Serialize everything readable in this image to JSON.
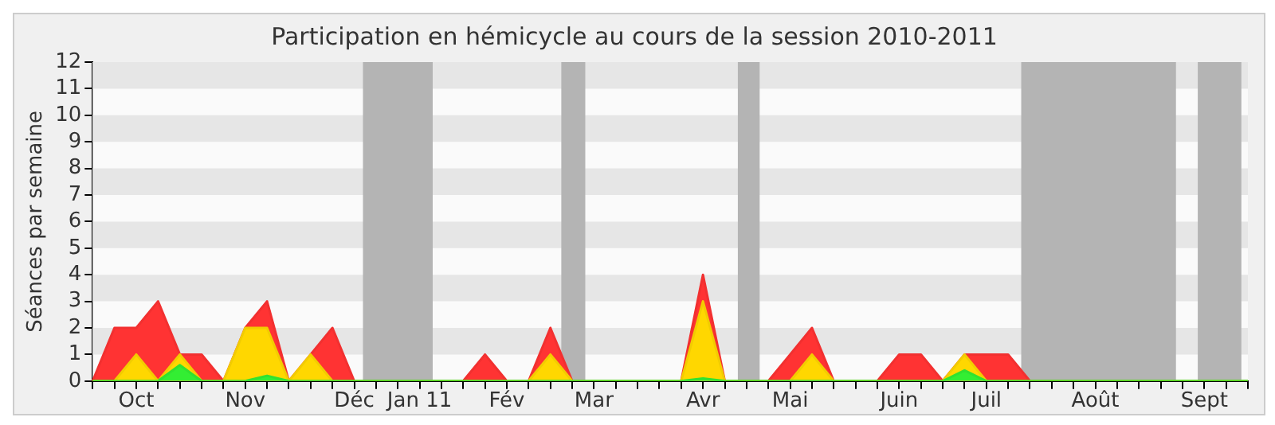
{
  "chart_data": {
    "type": "area",
    "title": "Participation en hémicycle au cours de la session 2010-2011",
    "ylabel": "Séances par semaine",
    "categories": [
      null,
      null,
      "Oct",
      null,
      null,
      null,
      null,
      "Nov",
      null,
      null,
      null,
      null,
      "Déc",
      null,
      null,
      "Jan 11",
      null,
      null,
      null,
      "Fév",
      null,
      null,
      null,
      "Mar",
      null,
      null,
      null,
      null,
      "Avr",
      null,
      null,
      null,
      "Mai",
      null,
      null,
      null,
      null,
      "Juin",
      null,
      null,
      null,
      "Juil",
      null,
      null,
      null,
      null,
      "Août",
      null,
      null,
      null,
      null,
      "Sept",
      null,
      null
    ],
    "series": [
      {
        "color": "#ff3333",
        "values": [
          0,
          2,
          2,
          3,
          1,
          1,
          0,
          2,
          3,
          0,
          1,
          2,
          0,
          0,
          0,
          0,
          0,
          0,
          1,
          0,
          0,
          2,
          0,
          0,
          0,
          0,
          0,
          0,
          4,
          0,
          0,
          0,
          1,
          2,
          0,
          0,
          0,
          1,
          1,
          0,
          1,
          1,
          1,
          0,
          0,
          0,
          0,
          0,
          0,
          0,
          0,
          0,
          0,
          0
        ]
      },
      {
        "color": "#ffd700",
        "values": [
          0,
          0,
          1,
          0,
          1,
          0,
          0,
          2,
          2,
          0,
          1,
          0,
          0,
          0,
          0,
          0,
          0,
          0,
          0,
          0,
          0,
          1,
          0,
          0,
          0,
          0,
          0,
          0,
          3,
          0,
          0,
          0,
          0,
          1,
          0,
          0,
          0,
          0,
          0,
          0,
          1,
          0,
          0,
          0,
          0,
          0,
          0,
          0,
          0,
          0,
          0,
          0,
          0,
          0
        ]
      },
      {
        "color": "#33ee33",
        "values": [
          0,
          0,
          0,
          0,
          0.6,
          0,
          0,
          0,
          0.2,
          0,
          0,
          0,
          0,
          0,
          0,
          0,
          0,
          0,
          0,
          0,
          0,
          0,
          0,
          0,
          0,
          0,
          0,
          0,
          0.1,
          0,
          0,
          0,
          0,
          0,
          0,
          0,
          0,
          0,
          0,
          0,
          0.4,
          0,
          0,
          0,
          0,
          0,
          0,
          0,
          0,
          0,
          0,
          0,
          0,
          0
        ]
      }
    ],
    "ylim": [
      0,
      12
    ],
    "yticks": [
      0,
      1,
      2,
      3,
      4,
      5,
      6,
      7,
      8,
      9,
      10,
      11,
      12
    ]
  }
}
